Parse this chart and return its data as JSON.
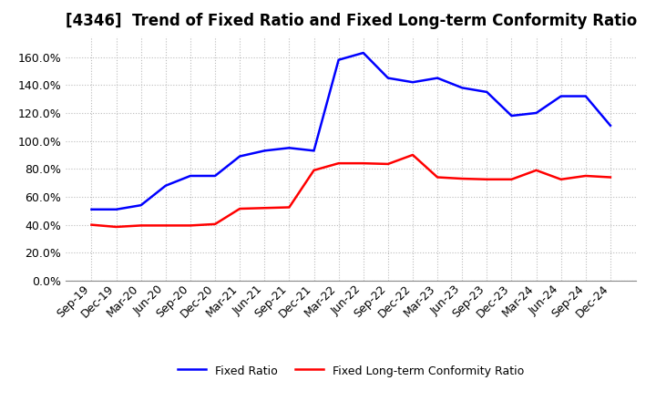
{
  "title": "[4346]  Trend of Fixed Ratio and Fixed Long-term Conformity Ratio",
  "x_labels": [
    "Sep-19",
    "Dec-19",
    "Mar-20",
    "Jun-20",
    "Sep-20",
    "Dec-20",
    "Mar-21",
    "Jun-21",
    "Sep-21",
    "Dec-21",
    "Mar-22",
    "Jun-22",
    "Sep-22",
    "Dec-22",
    "Mar-23",
    "Jun-23",
    "Sep-23",
    "Dec-23",
    "Mar-24",
    "Jun-24",
    "Sep-24",
    "Dec-24"
  ],
  "fixed_ratio": [
    51.0,
    51.0,
    54.0,
    68.0,
    75.0,
    75.0,
    89.0,
    93.0,
    95.0,
    93.0,
    158.0,
    163.0,
    145.0,
    142.0,
    145.0,
    138.0,
    135.0,
    118.0,
    120.0,
    132.0,
    132.0,
    111.0
  ],
  "fixed_lt_ratio": [
    40.0,
    38.5,
    39.5,
    39.5,
    39.5,
    40.5,
    51.5,
    52.0,
    52.5,
    79.0,
    84.0,
    84.0,
    83.5,
    90.0,
    74.0,
    73.0,
    72.5,
    72.5,
    79.0,
    72.5,
    75.0,
    74.0
  ],
  "fixed_ratio_color": "#0000FF",
  "fixed_lt_ratio_color": "#FF0000",
  "ylim": [
    0,
    175
  ],
  "yticks": [
    0,
    20,
    40,
    60,
    80,
    100,
    120,
    140,
    160
  ],
  "background_color": "#FFFFFF",
  "grid_color": "#BBBBBB",
  "legend_fixed_ratio": "Fixed Ratio",
  "legend_fixed_lt_ratio": "Fixed Long-term Conformity Ratio",
  "title_fontsize": 12,
  "tick_fontsize": 9,
  "line_width": 1.8
}
